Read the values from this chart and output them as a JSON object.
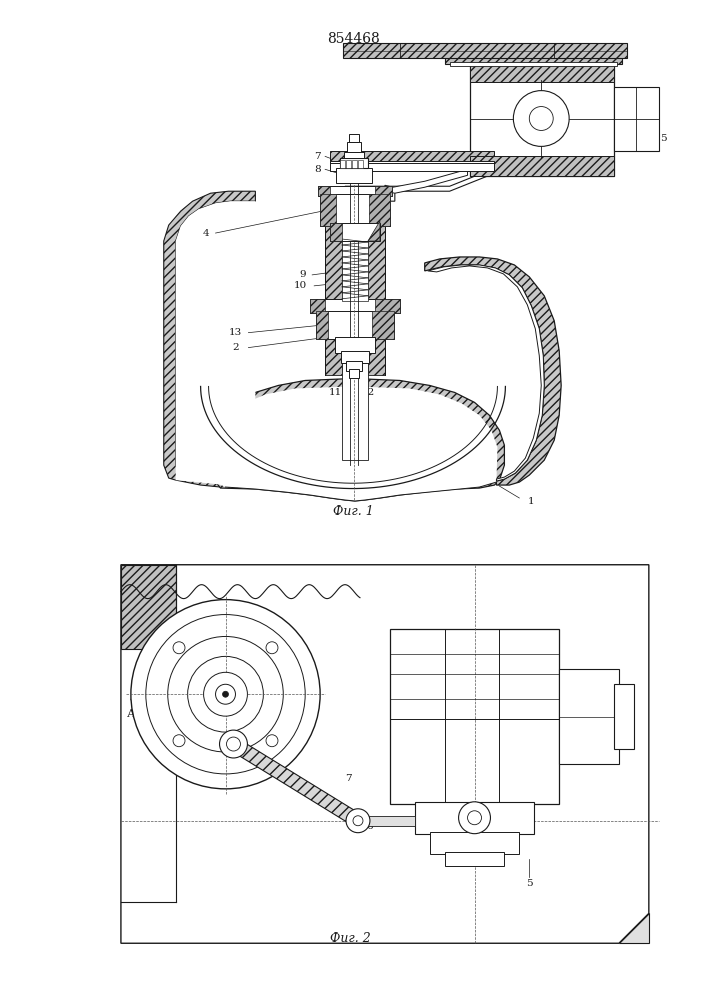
{
  "title": "854468",
  "fig1_caption": "Фиг. 1",
  "fig2_caption": "Фиг. 2",
  "bg_color": "#ffffff",
  "lc": "#1a1a1a",
  "gray_hatch": "#888888",
  "light_gray": "#cccccc"
}
